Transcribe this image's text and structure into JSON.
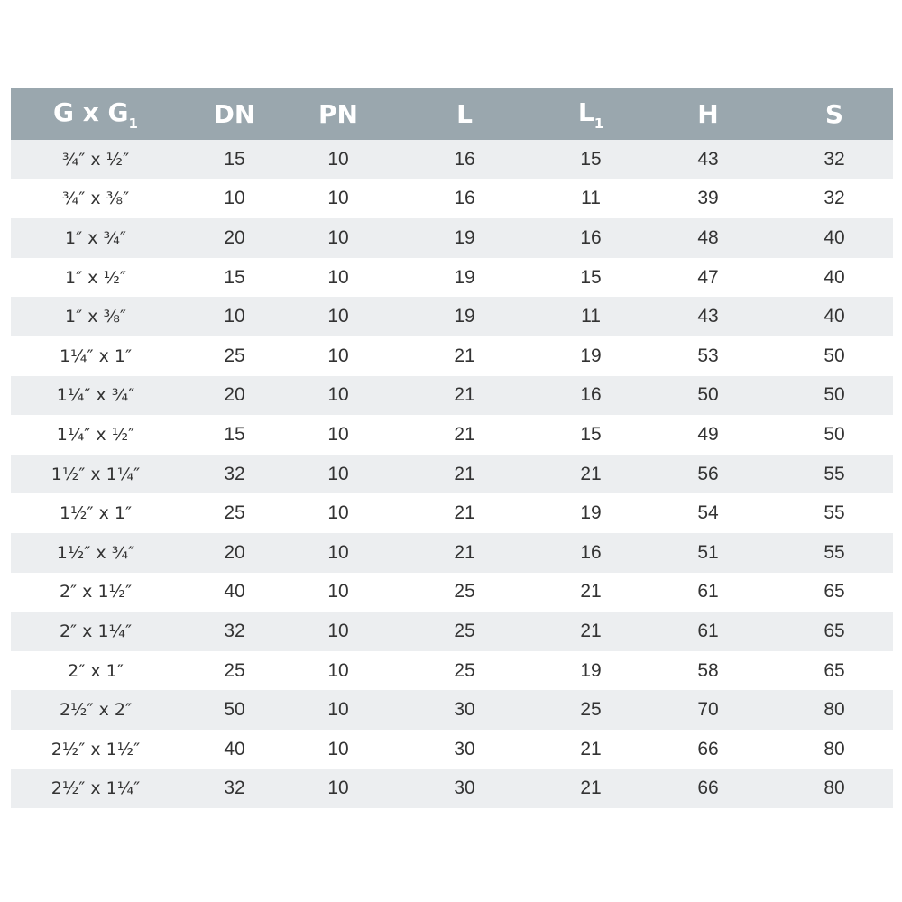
{
  "table": {
    "headers": [
      {
        "text": "G x G",
        "sub": "1"
      },
      {
        "text": "DN",
        "sub": ""
      },
      {
        "text": "PN",
        "sub": ""
      },
      {
        "text": "L",
        "sub": ""
      },
      {
        "text": "L",
        "sub": "1"
      },
      {
        "text": "H",
        "sub": ""
      },
      {
        "text": "S",
        "sub": ""
      }
    ],
    "rows": [
      [
        "¾″ x ½″",
        "15",
        "10",
        "16",
        "15",
        "43",
        "32"
      ],
      [
        "¾″ x ⅜″",
        "10",
        "10",
        "16",
        "11",
        "39",
        "32"
      ],
      [
        "1″ x ¾″",
        "20",
        "10",
        "19",
        "16",
        "48",
        "40"
      ],
      [
        "1″ x ½″",
        "15",
        "10",
        "19",
        "15",
        "47",
        "40"
      ],
      [
        "1″ x ⅜″",
        "10",
        "10",
        "19",
        "11",
        "43",
        "40"
      ],
      [
        "1¼″ x 1″",
        "25",
        "10",
        "21",
        "19",
        "53",
        "50"
      ],
      [
        "1¼″ x ¾″",
        "20",
        "10",
        "21",
        "16",
        "50",
        "50"
      ],
      [
        "1¼″ x ½″",
        "15",
        "10",
        "21",
        "15",
        "49",
        "50"
      ],
      [
        "1½″ x 1¼″",
        "32",
        "10",
        "21",
        "21",
        "56",
        "55"
      ],
      [
        "1½″ x 1″",
        "25",
        "10",
        "21",
        "19",
        "54",
        "55"
      ],
      [
        "1½″ x ¾″",
        "20",
        "10",
        "21",
        "16",
        "51",
        "55"
      ],
      [
        "2″ x 1½″",
        "40",
        "10",
        "25",
        "21",
        "61",
        "65"
      ],
      [
        "2″ x 1¼″",
        "32",
        "10",
        "25",
        "21",
        "61",
        "65"
      ],
      [
        "2″ x 1″",
        "25",
        "10",
        "25",
        "19",
        "58",
        "65"
      ],
      [
        "2½″ x 2″",
        "50",
        "10",
        "30",
        "25",
        "70",
        "80"
      ],
      [
        "2½″ x 1½″",
        "40",
        "10",
        "30",
        "21",
        "66",
        "80"
      ],
      [
        "2½″ x 1¼″",
        "32",
        "10",
        "30",
        "21",
        "66",
        "80"
      ]
    ],
    "header_color": "#9aa7ae",
    "stripe_color": "#eceef0"
  }
}
